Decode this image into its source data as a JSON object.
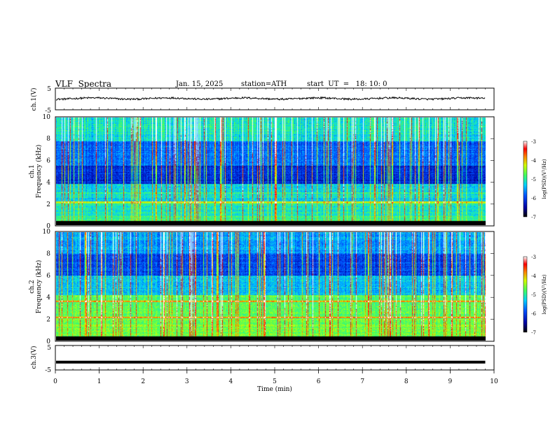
{
  "header": {
    "title": "VLF  Spectra",
    "date": "Jan. 15, 2025",
    "station": "station=ATH",
    "start": "start  UT  =   18: 10: 0"
  },
  "chart_data": [
    {
      "type": "line",
      "name": "ch1-waveform",
      "ylabel": "ch.1(V)",
      "ylim": [
        -5,
        5
      ],
      "yticks": [
        "5",
        "-5"
      ],
      "xlim": [
        0,
        10
      ],
      "x_data_end": 9.8,
      "color": "#000000",
      "description_values": {
        "mean": 0.2,
        "amplitude": 0.6
      }
    },
    {
      "type": "heatmap",
      "name": "ch1-spectrogram",
      "ylabel_channel": "ch.1",
      "ylabel": "Frequency  (kHz)",
      "ylim": [
        0,
        10
      ],
      "yticks": [
        "0",
        "2",
        "4",
        "6",
        "8",
        "10"
      ],
      "xlim": [
        0,
        10
      ],
      "x_data_end": 9.8,
      "colorbar": {
        "label": "log(PSD)(V²/Hz)",
        "range": [
          -7,
          -3
        ],
        "ticks": [
          "-3",
          "-4",
          "-5",
          "-6",
          "-7"
        ]
      }
    },
    {
      "type": "heatmap",
      "name": "ch2-spectrogram",
      "ylabel_channel": "ch.2",
      "ylabel": "Frequency  (kHz)",
      "ylim": [
        0,
        10
      ],
      "yticks": [
        "0",
        "2",
        "4",
        "6",
        "8",
        "10"
      ],
      "xlim": [
        0,
        10
      ],
      "x_data_end": 9.8,
      "colorbar": {
        "label": "log(PSD)(V²/Hz)",
        "range": [
          -7,
          -3
        ],
        "ticks": [
          "-3",
          "-4",
          "-5",
          "-6",
          "-7"
        ]
      }
    },
    {
      "type": "line",
      "name": "ch3-waveform",
      "ylabel": "ch.3(V)",
      "ylim": [
        -5,
        5
      ],
      "yticks": [
        "5",
        "-5"
      ],
      "xlim": [
        0,
        10
      ],
      "x_data_end": 9.8,
      "value": -1.8,
      "color": "#000000",
      "xlabel": "Time  (min)",
      "xticks": [
        "0",
        "1",
        "2",
        "3",
        "4",
        "5",
        "6",
        "7",
        "8",
        "9",
        "10"
      ]
    }
  ]
}
